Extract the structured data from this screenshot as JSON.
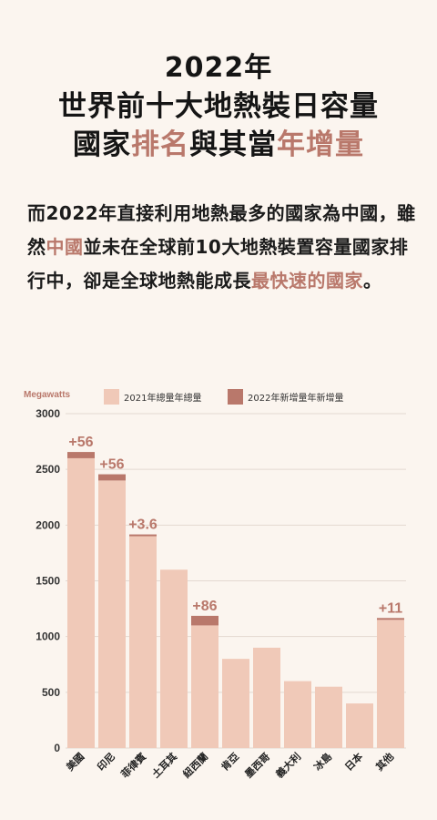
{
  "header": {
    "line1": "2022年",
    "line2": "世界前十大地熱裝日容量",
    "line3a": "國家",
    "line3b": "排名",
    "line3c": "與其當",
    "line3d": "年增量"
  },
  "paragraph": {
    "p1": "而2022年直接利用地熱最多的國家為中國，雖然",
    "p2": "中國",
    "p3": "並未在全球前10大地熱裝置容量國家排行中，卻是全球地熱能成長",
    "p4": "最快速的國家",
    "p5": "。"
  },
  "colors": {
    "base": "#f0c9b8",
    "increase": "#b9786b",
    "accent": "#b9786b",
    "background": "#fbf5ef"
  },
  "chart_data": {
    "type": "bar",
    "stacked": true,
    "unit_label": "Megawatts",
    "categories": [
      "美國",
      "印尼",
      "菲律賓",
      "土耳其",
      "紐西蘭",
      "肯亞",
      "墨西哥",
      "義大利",
      "冰島",
      "日本",
      "其他"
    ],
    "series": [
      {
        "name": "2021年總量年總量",
        "values": [
          2600,
          2400,
          1900,
          1600,
          1100,
          800,
          900,
          600,
          550,
          400,
          1150
        ]
      },
      {
        "name": "2022年新增量年新增量",
        "values": [
          56,
          56,
          3.6,
          0,
          86,
          0,
          0,
          0,
          0,
          0,
          11
        ]
      }
    ],
    "data_labels": [
      "+56",
      "+56",
      "+3.6",
      "",
      "+86",
      "",
      "",
      "",
      "",
      "",
      "+11"
    ],
    "ylim": [
      0,
      3000
    ],
    "yticks": [
      0,
      500,
      1000,
      1500,
      2000,
      2500,
      3000
    ],
    "grid": true,
    "legend_position": "top"
  }
}
